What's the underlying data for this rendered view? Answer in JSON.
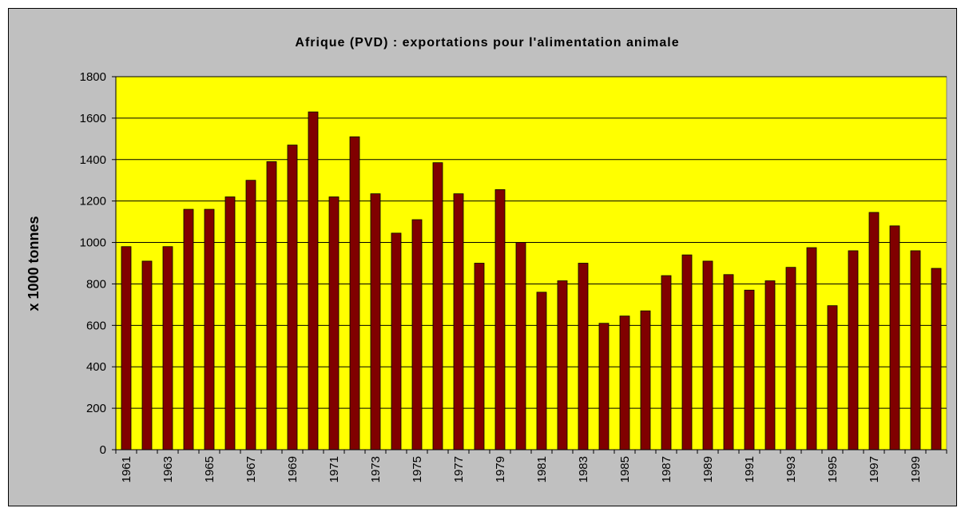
{
  "chart_data": {
    "type": "bar",
    "title": "Afrique (PVD) : exportations pour l'alimentation animale",
    "y_label": "x 1000 tonnes",
    "categories": [
      "1961",
      null,
      "1963",
      null,
      "1965",
      null,
      "1967",
      null,
      "1969",
      null,
      "1971",
      null,
      "1973",
      null,
      "1975",
      null,
      "1977",
      null,
      "1979",
      null,
      "1981",
      null,
      "1983",
      null,
      "1985",
      null,
      "1987",
      null,
      "1989",
      null,
      "1991",
      null,
      "1993",
      null,
      "1995",
      null,
      "1997",
      null,
      "1999",
      null
    ],
    "values": [
      980,
      910,
      980,
      1160,
      1160,
      1220,
      1300,
      1390,
      1470,
      1630,
      1220,
      1510,
      1235,
      1045,
      1110,
      1385,
      1235,
      900,
      1255,
      1000,
      760,
      815,
      900,
      610,
      645,
      670,
      840,
      940,
      910,
      845,
      770,
      815,
      880,
      975,
      695,
      960,
      1145,
      1080,
      960,
      875
    ],
    "color": "#800000",
    "ylim": [
      0,
      1800
    ],
    "yticks": [
      0,
      200,
      400,
      600,
      800,
      1000,
      1200,
      1400,
      1600,
      1800
    ],
    "grid": true
  }
}
